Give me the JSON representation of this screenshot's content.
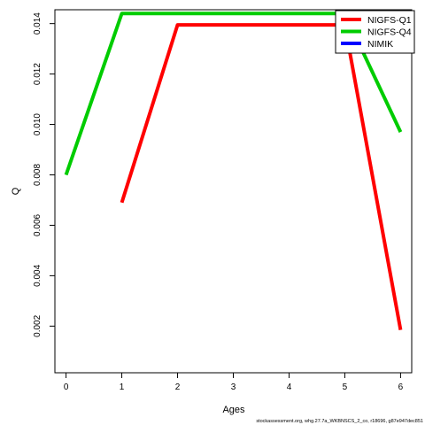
{
  "chart_data": {
    "type": "line",
    "title": "",
    "xlabel": "Ages",
    "ylabel": "Q",
    "x": [
      0,
      1,
      2,
      3,
      4,
      5,
      6
    ],
    "xlim": [
      -0.2,
      6.2
    ],
    "ylim": [
      0.00015,
      0.01455
    ],
    "xticks": [
      0,
      1,
      2,
      3,
      4,
      5,
      6
    ],
    "yticks": [
      0.002,
      0.004,
      0.006,
      0.008,
      0.01,
      0.012,
      0.014
    ],
    "ytick_labels": [
      "0.002",
      "0.004",
      "0.006",
      "0.008",
      "0.010",
      "0.012",
      "0.014"
    ],
    "grid": false,
    "legend_position": "top-right",
    "series": [
      {
        "name": "NIGFS-Q1",
        "color": "#ff0000",
        "values": [
          null,
          0.0069,
          0.01395,
          0.01395,
          0.01395,
          0.01395,
          0.00185
        ]
      },
      {
        "name": "NIGFS-Q4",
        "color": "#00cc00",
        "values": [
          0.008,
          0.0144,
          0.0144,
          0.0144,
          0.0144,
          0.0144,
          0.0097
        ]
      },
      {
        "name": "NIMIK",
        "color": "#0000ff",
        "values": [
          null,
          null,
          null,
          null,
          null,
          null,
          null
        ]
      }
    ]
  },
  "footer_text": "stockassessment.org, whg.27.7a_WKBNSCS_2_co, r18696, g87e947dec851"
}
